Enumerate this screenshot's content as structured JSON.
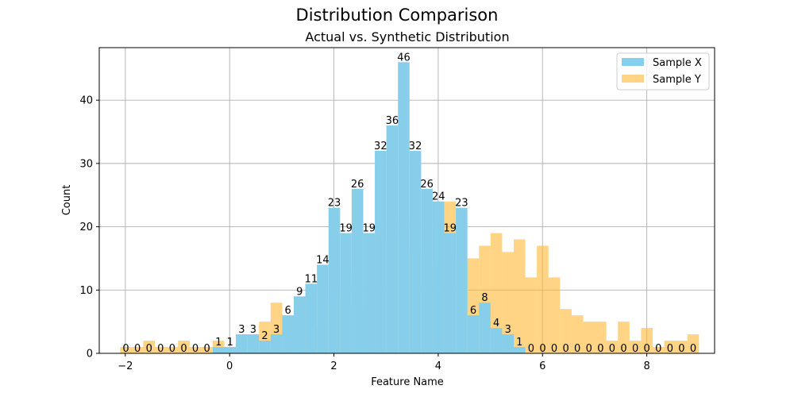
{
  "chart_data": {
    "type": "bar",
    "title": "Distribution Comparison",
    "subtitle": "Actual vs. Synthetic Distribution",
    "xlabel": "Feature Name",
    "ylabel": "Count",
    "xlim": [
      -2.5,
      9.3
    ],
    "ylim": [
      0,
      48.3
    ],
    "xticks": [
      -2,
      0,
      2,
      4,
      6,
      8
    ],
    "yticks": [
      0,
      10,
      20,
      30,
      40
    ],
    "grid": true,
    "legend": "top-right",
    "bin_edges": [
      -2.1,
      -1.878,
      -1.656,
      -1.434,
      -1.212,
      -0.99,
      -0.768,
      -0.546,
      -0.324,
      -0.102,
      0.12,
      0.342,
      0.564,
      0.786,
      1.008,
      1.23,
      1.452,
      1.674,
      1.896,
      2.118,
      2.34,
      2.562,
      2.784,
      3.006,
      3.228,
      3.45,
      3.672,
      3.894,
      4.116,
      4.338,
      4.56,
      4.782,
      5.004,
      5.226,
      5.448,
      5.67,
      5.892,
      6.114,
      6.336,
      6.558,
      6.78,
      7.002,
      7.224,
      7.446,
      7.668,
      7.89,
      8.112,
      8.334,
      8.556,
      8.778,
      9.0
    ],
    "series": [
      {
        "name": "Sample X",
        "color": "#87CEEB",
        "values": [
          0,
          0,
          0,
          0,
          0,
          0,
          0,
          0,
          1,
          1,
          3,
          3,
          2,
          3,
          6,
          9,
          11,
          14,
          23,
          19,
          26,
          19,
          32,
          36,
          46,
          32,
          26,
          24,
          19,
          23,
          6,
          8,
          4,
          3,
          1,
          0,
          0,
          0,
          0,
          0,
          0,
          0,
          0,
          0,
          0,
          0,
          0,
          0,
          0,
          0
        ],
        "labels": [
          "0",
          "0",
          "0",
          "0",
          "0",
          "0",
          "0",
          "0",
          "1",
          "1",
          "3",
          "3",
          "2",
          "3",
          "6",
          "9",
          "11",
          "14",
          "23",
          "19",
          "26",
          "19",
          "32",
          "36",
          "46",
          "32",
          "26",
          "24",
          "19",
          "23",
          "6",
          "8",
          "4",
          "3",
          "1",
          "0",
          "0",
          "0",
          "0",
          "0",
          "0",
          "0",
          "0",
          "0",
          "0",
          "0",
          "0",
          "0",
          "0",
          "0"
        ]
      },
      {
        "name": "Sample Y",
        "color": "#FFB732",
        "values": [
          1,
          1,
          2,
          1,
          1,
          2,
          1,
          1,
          2,
          0,
          3,
          3,
          5,
          8,
          6,
          4,
          9,
          4,
          9,
          13,
          7,
          11,
          19,
          18,
          21,
          16,
          14,
          15,
          24,
          15,
          15,
          17,
          19,
          16,
          18,
          12,
          17,
          12,
          7,
          6,
          5,
          5,
          2,
          5,
          2,
          4,
          1,
          2,
          2,
          3
        ]
      }
    ]
  }
}
